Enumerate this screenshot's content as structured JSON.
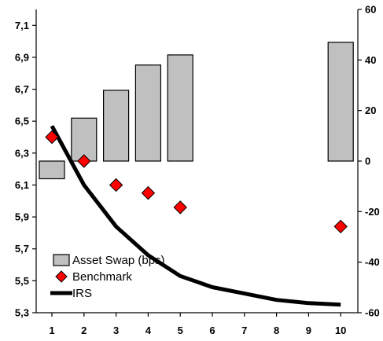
{
  "chart_data": {
    "type": "bar",
    "x": [
      1,
      2,
      3,
      4,
      5,
      6,
      7,
      8,
      9,
      10
    ],
    "y_left": {
      "range": [
        5.3,
        7.2
      ],
      "ticks": [
        5.3,
        5.5,
        5.7,
        5.9,
        6.1,
        6.3,
        6.5,
        6.7,
        6.9,
        7.1
      ],
      "tick_labels": [
        "5,3",
        "5,5",
        "5,7",
        "5,9",
        "6,1",
        "6,3",
        "6,5",
        "6,7",
        "6,9",
        "7,1"
      ]
    },
    "y_right": {
      "range": [
        -60,
        60
      ],
      "ticks": [
        -60,
        -40,
        -20,
        0,
        20,
        40,
        60
      ],
      "tick_labels": [
        "-60",
        "-40",
        "-20",
        "0",
        "20",
        "40",
        "60"
      ]
    },
    "series": [
      {
        "name": "Asset Swap (bps)",
        "type": "bar",
        "axis": "right",
        "x": [
          1,
          2,
          3,
          4,
          5,
          10
        ],
        "values": [
          -7,
          17,
          28,
          38,
          42,
          47
        ],
        "color": "#c0c0c0"
      },
      {
        "name": "Benchmark",
        "type": "scatter",
        "axis": "left",
        "x": [
          1,
          2,
          3,
          4,
          5,
          10
        ],
        "values": [
          6.4,
          6.25,
          6.1,
          6.05,
          5.96,
          5.84
        ],
        "color": "#ff0000"
      },
      {
        "name": "IRS",
        "type": "line",
        "axis": "left",
        "x": [
          1,
          2,
          3,
          4,
          5,
          6,
          7,
          8,
          9,
          10
        ],
        "values": [
          6.47,
          6.1,
          5.84,
          5.66,
          5.53,
          5.46,
          5.42,
          5.38,
          5.36,
          5.35
        ],
        "color": "#000000"
      }
    ],
    "legend": {
      "position": "bottom-left",
      "entries": [
        "Asset Swap (bps)",
        "Benchmark",
        "IRS"
      ]
    },
    "grid": false
  }
}
